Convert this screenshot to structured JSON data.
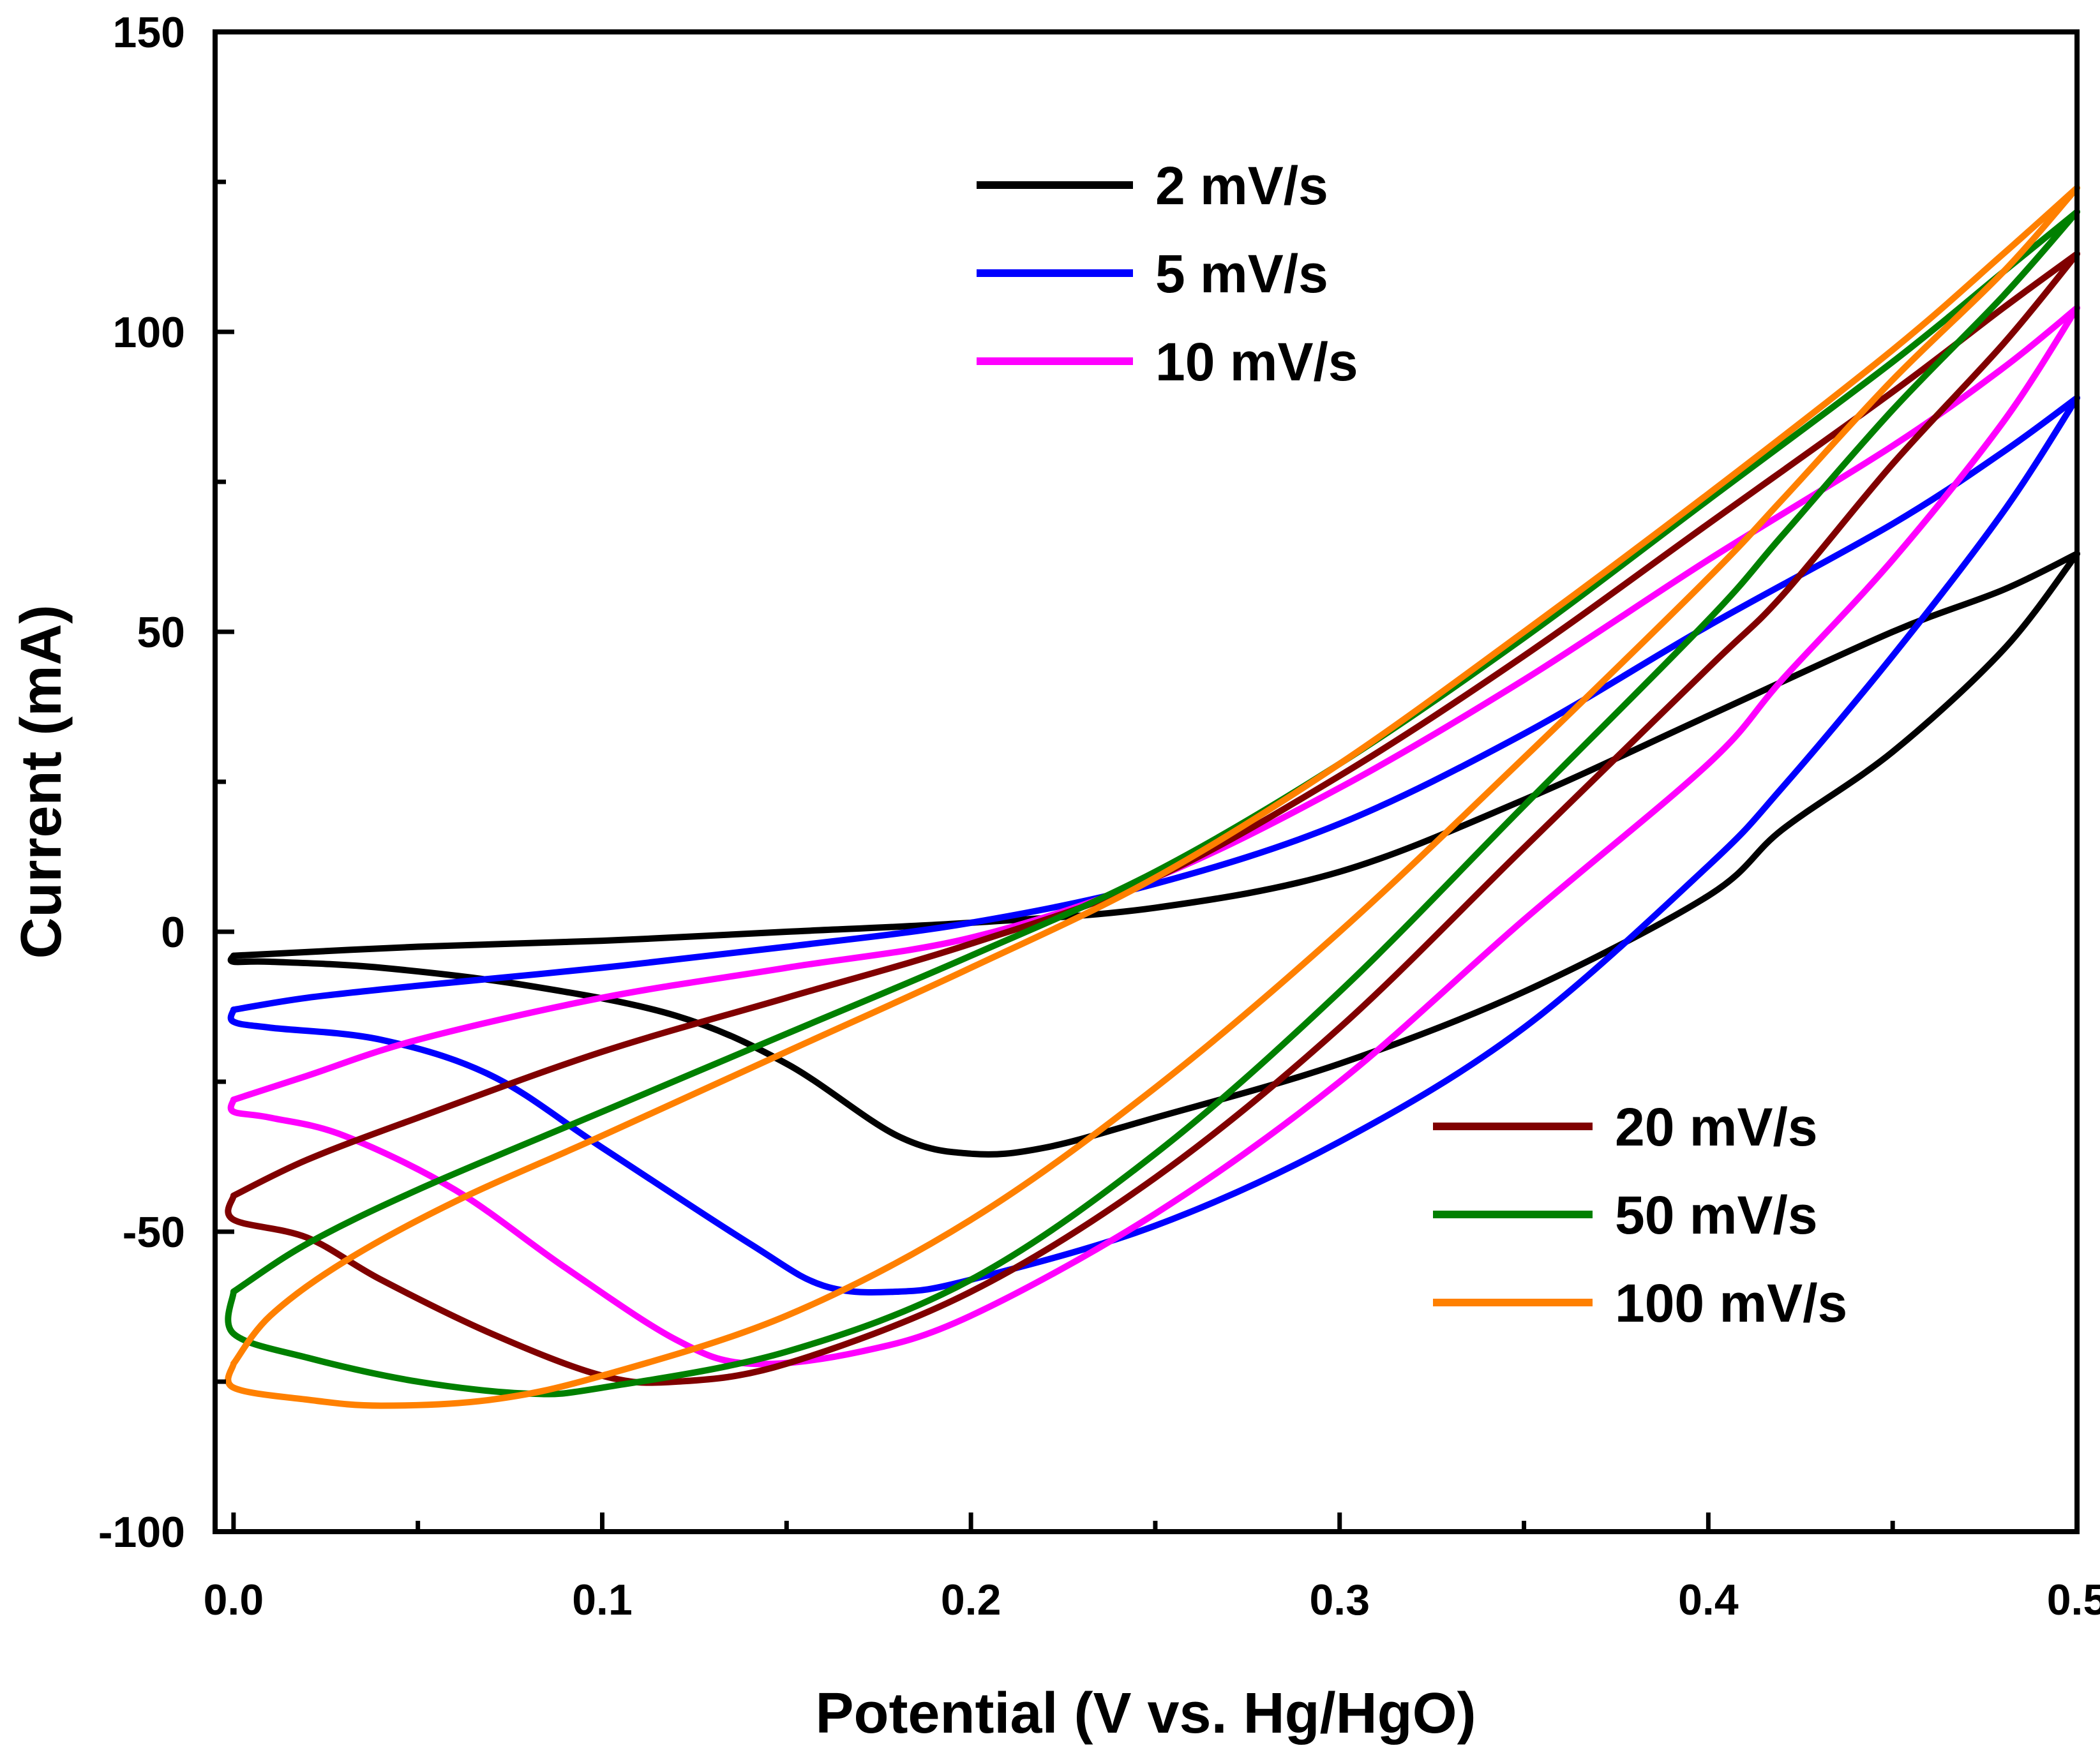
{
  "chart_data": {
    "type": "line",
    "title": "",
    "xlabel": "Potential (V vs. Hg/HgO)",
    "ylabel": "Current (mA)",
    "xlim": [
      -0.005,
      0.5
    ],
    "ylim": [
      -100,
      150
    ],
    "xticks": [
      0.0,
      0.1,
      0.2,
      0.3,
      0.4,
      0.5
    ],
    "xtick_labels": [
      "0.0",
      "0.1",
      "0.2",
      "0.3",
      "0.4",
      "0.5"
    ],
    "yticks": [
      -100,
      -50,
      0,
      50,
      100,
      150
    ],
    "ytick_labels": [
      "-100",
      "-50",
      "0",
      "50",
      "100",
      "150"
    ],
    "grid": false,
    "legend_groups": [
      {
        "position": "top-center",
        "entries": [
          0,
          1,
          2
        ]
      },
      {
        "position": "bottom-right",
        "entries": [
          3,
          4,
          5
        ]
      }
    ],
    "series": [
      {
        "name": "2 mV/s",
        "color": "#000000",
        "anodic": [
          [
            0.0,
            -4
          ],
          [
            0.05,
            -2.5
          ],
          [
            0.1,
            -1.5
          ],
          [
            0.15,
            0
          ],
          [
            0.2,
            1.5
          ],
          [
            0.25,
            4
          ],
          [
            0.3,
            10
          ],
          [
            0.35,
            22
          ],
          [
            0.4,
            36
          ],
          [
            0.45,
            50
          ],
          [
            0.48,
            57
          ],
          [
            0.5,
            63
          ]
        ],
        "cathodic": [
          [
            0.5,
            63
          ],
          [
            0.48,
            47
          ],
          [
            0.45,
            30
          ],
          [
            0.42,
            17
          ],
          [
            0.4,
            6
          ],
          [
            0.35,
            -10
          ],
          [
            0.3,
            -22
          ],
          [
            0.25,
            -31
          ],
          [
            0.22,
            -36
          ],
          [
            0.2,
            -37
          ],
          [
            0.18,
            -34
          ],
          [
            0.15,
            -22
          ],
          [
            0.12,
            -14
          ],
          [
            0.08,
            -9
          ],
          [
            0.04,
            -6
          ],
          [
            0.01,
            -5
          ],
          [
            0.0,
            -5
          ],
          [
            0.0,
            -4
          ]
        ]
      },
      {
        "name": "5 mV/s",
        "color": "#0000ff",
        "anodic": [
          [
            0.0,
            -13
          ],
          [
            0.02,
            -11
          ],
          [
            0.05,
            -9
          ],
          [
            0.1,
            -6
          ],
          [
            0.15,
            -2.5
          ],
          [
            0.2,
            1.5
          ],
          [
            0.25,
            8
          ],
          [
            0.3,
            18
          ],
          [
            0.35,
            33
          ],
          [
            0.4,
            51
          ],
          [
            0.45,
            68
          ],
          [
            0.48,
            80
          ],
          [
            0.5,
            89
          ]
        ],
        "cathodic": [
          [
            0.5,
            89
          ],
          [
            0.48,
            70
          ],
          [
            0.45,
            46
          ],
          [
            0.42,
            24
          ],
          [
            0.4,
            11
          ],
          [
            0.35,
            -16
          ],
          [
            0.3,
            -35
          ],
          [
            0.25,
            -49
          ],
          [
            0.2,
            -58
          ],
          [
            0.18,
            -60
          ],
          [
            0.16,
            -59
          ],
          [
            0.14,
            -52
          ],
          [
            0.1,
            -36
          ],
          [
            0.07,
            -24
          ],
          [
            0.04,
            -18
          ],
          [
            0.01,
            -16
          ],
          [
            0.0,
            -15
          ],
          [
            0.0,
            -13
          ]
        ]
      },
      {
        "name": "10 mV/s",
        "color": "#ff00ff",
        "anodic": [
          [
            0.0,
            -28
          ],
          [
            0.02,
            -24
          ],
          [
            0.05,
            -18
          ],
          [
            0.1,
            -11
          ],
          [
            0.15,
            -6
          ],
          [
            0.2,
            -1
          ],
          [
            0.25,
            9
          ],
          [
            0.3,
            24
          ],
          [
            0.35,
            42
          ],
          [
            0.4,
            62
          ],
          [
            0.45,
            81
          ],
          [
            0.48,
            94
          ],
          [
            0.5,
            104
          ]
        ],
        "cathodic": [
          [
            0.5,
            104
          ],
          [
            0.48,
            85
          ],
          [
            0.45,
            62
          ],
          [
            0.42,
            42
          ],
          [
            0.4,
            28
          ],
          [
            0.35,
            2
          ],
          [
            0.3,
            -25
          ],
          [
            0.25,
            -47
          ],
          [
            0.2,
            -64
          ],
          [
            0.17,
            -70
          ],
          [
            0.14,
            -72
          ],
          [
            0.12,
            -68
          ],
          [
            0.09,
            -56
          ],
          [
            0.06,
            -43
          ],
          [
            0.03,
            -34
          ],
          [
            0.01,
            -31
          ],
          [
            0.0,
            -30
          ],
          [
            0.0,
            -28
          ]
        ]
      },
      {
        "name": "20 mV/s",
        "color": "#800000",
        "anodic": [
          [
            0.0,
            -44
          ],
          [
            0.02,
            -38
          ],
          [
            0.05,
            -31
          ],
          [
            0.1,
            -20
          ],
          [
            0.15,
            -11
          ],
          [
            0.2,
            -2
          ],
          [
            0.25,
            9
          ],
          [
            0.3,
            26
          ],
          [
            0.35,
            46
          ],
          [
            0.4,
            68
          ],
          [
            0.45,
            90
          ],
          [
            0.48,
            104
          ],
          [
            0.5,
            113
          ]
        ],
        "cathodic": [
          [
            0.5,
            113
          ],
          [
            0.48,
            98
          ],
          [
            0.45,
            78
          ],
          [
            0.42,
            56
          ],
          [
            0.4,
            44
          ],
          [
            0.35,
            14
          ],
          [
            0.3,
            -16
          ],
          [
            0.25,
            -41
          ],
          [
            0.2,
            -60
          ],
          [
            0.15,
            -72
          ],
          [
            0.12,
            -75
          ],
          [
            0.1,
            -74
          ],
          [
            0.07,
            -67
          ],
          [
            0.04,
            -58
          ],
          [
            0.02,
            -51
          ],
          [
            0.0,
            -48
          ],
          [
            0.0,
            -44
          ]
        ]
      },
      {
        "name": "50 mV/s",
        "color": "#008000",
        "anodic": [
          [
            0.0,
            -60
          ],
          [
            0.02,
            -52
          ],
          [
            0.05,
            -43
          ],
          [
            0.1,
            -30
          ],
          [
            0.15,
            -17
          ],
          [
            0.2,
            -4
          ],
          [
            0.25,
            10
          ],
          [
            0.3,
            28
          ],
          [
            0.35,
            49
          ],
          [
            0.4,
            72
          ],
          [
            0.45,
            95
          ],
          [
            0.48,
            110
          ],
          [
            0.5,
            120
          ]
        ],
        "cathodic": [
          [
            0.5,
            120
          ],
          [
            0.48,
            106
          ],
          [
            0.45,
            87
          ],
          [
            0.42,
            66
          ],
          [
            0.4,
            52
          ],
          [
            0.35,
            21
          ],
          [
            0.3,
            -10
          ],
          [
            0.25,
            -37
          ],
          [
            0.2,
            -58
          ],
          [
            0.15,
            -70
          ],
          [
            0.1,
            -76
          ],
          [
            0.08,
            -77
          ],
          [
            0.05,
            -75
          ],
          [
            0.02,
            -71
          ],
          [
            0.0,
            -67
          ],
          [
            0.0,
            -60
          ]
        ]
      },
      {
        "name": "100 mV/s",
        "color": "#ff8000",
        "anodic": [
          [
            0.0,
            -72
          ],
          [
            0.01,
            -64
          ],
          [
            0.03,
            -55
          ],
          [
            0.06,
            -45
          ],
          [
            0.1,
            -34
          ],
          [
            0.15,
            -20
          ],
          [
            0.2,
            -6
          ],
          [
            0.25,
            9
          ],
          [
            0.3,
            28
          ],
          [
            0.35,
            50
          ],
          [
            0.4,
            73
          ],
          [
            0.45,
            97
          ],
          [
            0.48,
            113
          ],
          [
            0.5,
            124
          ]
        ],
        "cathodic": [
          [
            0.5,
            124
          ],
          [
            0.48,
            110
          ],
          [
            0.45,
            92
          ],
          [
            0.42,
            72
          ],
          [
            0.4,
            59
          ],
          [
            0.35,
            29
          ],
          [
            0.3,
            0
          ],
          [
            0.25,
            -26
          ],
          [
            0.2,
            -48
          ],
          [
            0.15,
            -64
          ],
          [
            0.1,
            -74
          ],
          [
            0.07,
            -78
          ],
          [
            0.04,
            -79
          ],
          [
            0.02,
            -78
          ],
          [
            0.0,
            -76
          ],
          [
            0.0,
            -72
          ]
        ]
      }
    ]
  }
}
